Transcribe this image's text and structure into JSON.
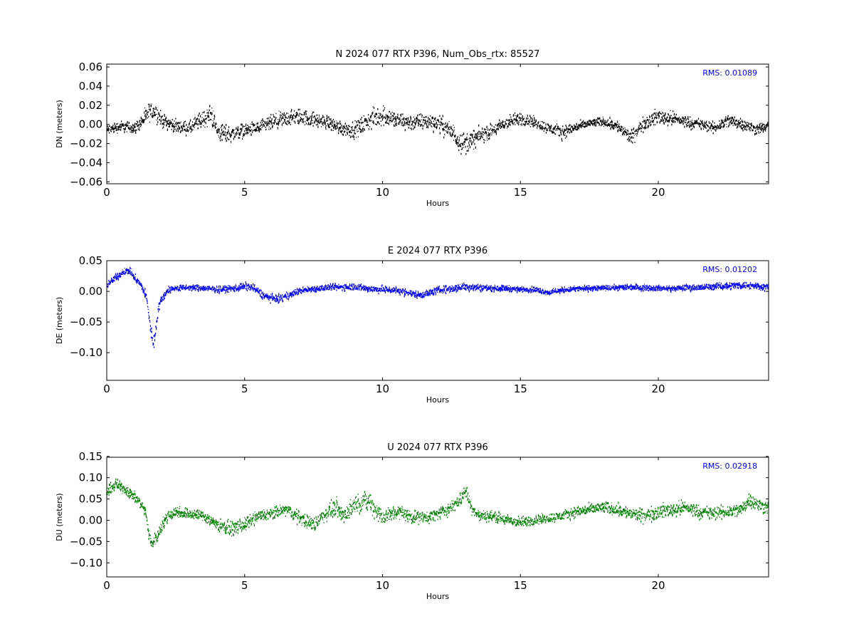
{
  "chart_data": [
    {
      "type": "scatter",
      "title": "N 2024 077 RTX  P396, Num_Obs_rtx: 85527",
      "xlabel": "Hours",
      "ylabel": "DN (meters)",
      "xlim": [
        0,
        24
      ],
      "ylim": [
        -0.062,
        0.063
      ],
      "xticks": [
        0,
        5,
        10,
        15,
        20
      ],
      "yticks": [
        -0.06,
        -0.04,
        -0.02,
        0.0,
        0.02,
        0.04,
        0.06
      ],
      "ytick_labels": [
        "−0.06",
        "−0.04",
        "−0.02",
        "0.00",
        "0.02",
        "0.04",
        "0.06"
      ],
      "color": "#000000",
      "annotation": "RMS:  0.01089",
      "annotation_color": "#0000ff",
      "num_obs": 85527,
      "series": [
        {
          "x": [
            0,
            0.5,
            1.0,
            1.3,
            1.5,
            1.7,
            2.0,
            2.5,
            3.0,
            3.5,
            3.8,
            4.0,
            4.5,
            5.0,
            5.5,
            6.0,
            6.5,
            7.0,
            7.5,
            8.0,
            8.5,
            9.0,
            9.5,
            9.8,
            10.0,
            10.5,
            11.0,
            11.5,
            12.0,
            12.5,
            12.8,
            13.0,
            13.5,
            14.0,
            14.5,
            15.0,
            15.5,
            16.0,
            16.5,
            17.0,
            17.5,
            18.0,
            18.5,
            19.0,
            19.5,
            20.0,
            20.5,
            21.0,
            21.5,
            22.0,
            22.5,
            23.0,
            23.5,
            24.0
          ],
          "y": [
            -0.006,
            -0.002,
            -0.004,
            0.004,
            0.012,
            0.015,
            0.004,
            -0.002,
            -0.004,
            0.006,
            0.01,
            -0.008,
            -0.01,
            -0.006,
            -0.004,
            0.002,
            0.006,
            0.008,
            0.005,
            0.002,
            -0.004,
            -0.006,
            0.004,
            0.008,
            0.01,
            0.004,
            0.002,
            0.003,
            0.002,
            -0.008,
            -0.018,
            -0.02,
            -0.012,
            -0.006,
            0.002,
            0.006,
            0.002,
            -0.004,
            -0.008,
            -0.003,
            0.001,
            0.003,
            -0.002,
            -0.014,
            0.002,
            0.008,
            0.006,
            0.003,
            0.0,
            -0.004,
            0.004,
            0.001,
            -0.005,
            -0.002
          ],
          "spread": [
            0.008,
            0.008,
            0.008,
            0.01,
            0.014,
            0.014,
            0.01,
            0.009,
            0.01,
            0.014,
            0.015,
            0.014,
            0.012,
            0.01,
            0.01,
            0.012,
            0.012,
            0.012,
            0.011,
            0.01,
            0.011,
            0.012,
            0.014,
            0.016,
            0.016,
            0.013,
            0.012,
            0.012,
            0.012,
            0.014,
            0.016,
            0.016,
            0.012,
            0.01,
            0.01,
            0.01,
            0.008,
            0.008,
            0.01,
            0.007,
            0.006,
            0.007,
            0.008,
            0.01,
            0.01,
            0.012,
            0.01,
            0.009,
            0.008,
            0.008,
            0.01,
            0.009,
            0.008,
            0.007
          ]
        }
      ]
    },
    {
      "type": "scatter",
      "title": "E 2024 077 RTX  P396",
      "xlabel": "Hours",
      "ylabel": "DE (meters)",
      "xlim": [
        0,
        24
      ],
      "ylim": [
        -0.145,
        0.05
      ],
      "xticks": [
        0,
        5,
        10,
        15,
        20
      ],
      "yticks": [
        -0.1,
        -0.05,
        0.0,
        0.05
      ],
      "ytick_labels": [
        "−0.10",
        "−0.05",
        "0.00",
        "0.05"
      ],
      "color": "#0000ff",
      "annotation": "RMS:  0.01202",
      "annotation_color": "#0000ff",
      "series": [
        {
          "x": [
            0,
            0.3,
            0.6,
            0.8,
            1.0,
            1.2,
            1.4,
            1.5,
            1.6,
            1.7,
            1.8,
            1.9,
            2.0,
            2.2,
            2.5,
            3.0,
            3.5,
            4.0,
            4.5,
            5.0,
            5.3,
            5.6,
            6.0,
            6.3,
            6.6,
            7.0,
            7.5,
            8.0,
            8.5,
            9.0,
            9.5,
            10.0,
            10.5,
            11.0,
            11.3,
            11.6,
            12.0,
            12.5,
            13.0,
            13.5,
            14.0,
            14.5,
            15.0,
            15.5,
            16.0,
            16.5,
            17.0,
            17.5,
            18.0,
            18.5,
            19.0,
            19.5,
            20.0,
            20.5,
            21.0,
            21.5,
            22.0,
            22.5,
            23.0,
            23.5,
            24.0
          ],
          "y": [
            0.01,
            0.022,
            0.032,
            0.034,
            0.022,
            0.012,
            -0.005,
            -0.035,
            -0.07,
            -0.085,
            -0.045,
            -0.02,
            -0.012,
            0.002,
            0.005,
            0.006,
            0.005,
            0.003,
            0.004,
            0.008,
            0.006,
            -0.005,
            -0.012,
            -0.012,
            -0.006,
            0.001,
            0.004,
            0.006,
            0.007,
            0.008,
            0.004,
            0.003,
            0.002,
            -0.003,
            -0.006,
            -0.004,
            0.002,
            0.004,
            0.008,
            0.006,
            0.005,
            0.005,
            0.003,
            0.003,
            -0.002,
            0.002,
            0.004,
            0.005,
            0.005,
            0.006,
            0.007,
            0.006,
            0.005,
            0.004,
            0.006,
            0.006,
            0.008,
            0.009,
            0.01,
            0.009,
            0.006
          ],
          "spread": [
            0.008,
            0.008,
            0.008,
            0.008,
            0.008,
            0.008,
            0.012,
            0.016,
            0.02,
            0.016,
            0.016,
            0.012,
            0.01,
            0.008,
            0.007,
            0.007,
            0.007,
            0.007,
            0.008,
            0.009,
            0.009,
            0.009,
            0.009,
            0.009,
            0.008,
            0.007,
            0.007,
            0.007,
            0.008,
            0.008,
            0.008,
            0.008,
            0.008,
            0.008,
            0.008,
            0.008,
            0.008,
            0.009,
            0.01,
            0.008,
            0.007,
            0.007,
            0.006,
            0.006,
            0.006,
            0.006,
            0.006,
            0.006,
            0.006,
            0.006,
            0.007,
            0.007,
            0.006,
            0.006,
            0.007,
            0.007,
            0.007,
            0.008,
            0.008,
            0.008,
            0.008
          ]
        }
      ]
    },
    {
      "type": "scatter",
      "title": "U 2024 077 RTX  P396",
      "xlabel": "Hours",
      "ylabel": "DU (meters)",
      "xlim": [
        0,
        24
      ],
      "ylim": [
        -0.133,
        0.148
      ],
      "xticks": [
        0,
        5,
        10,
        15,
        20
      ],
      "yticks": [
        -0.1,
        -0.05,
        0.0,
        0.05,
        0.1,
        0.15
      ],
      "ytick_labels": [
        "−0.10",
        "−0.05",
        "0.00",
        "0.05",
        "0.10",
        "0.15"
      ],
      "color": "#008000",
      "annotation": "RMS:  0.02918",
      "annotation_color": "#0000ff",
      "series": [
        {
          "x": [
            0,
            0.3,
            0.6,
            0.9,
            1.2,
            1.4,
            1.5,
            1.6,
            1.8,
            2.0,
            2.2,
            2.5,
            3.0,
            3.5,
            4.0,
            4.5,
            5.0,
            5.5,
            6.0,
            6.5,
            7.0,
            7.5,
            8.0,
            8.3,
            8.6,
            9.0,
            9.5,
            9.8,
            10.0,
            10.5,
            11.0,
            11.5,
            12.0,
            12.5,
            12.8,
            13.0,
            13.2,
            13.5,
            14.0,
            14.5,
            15.0,
            15.5,
            16.0,
            16.5,
            17.0,
            17.5,
            18.0,
            18.5,
            19.0,
            19.5,
            20.0,
            20.5,
            21.0,
            21.5,
            22.0,
            22.5,
            23.0,
            23.3,
            23.6,
            24.0
          ],
          "y": [
            0.065,
            0.085,
            0.075,
            0.06,
            0.04,
            0.02,
            -0.03,
            -0.055,
            -0.04,
            -0.01,
            0.01,
            0.02,
            0.015,
            0.01,
            -0.01,
            -0.02,
            -0.01,
            0.01,
            0.015,
            0.025,
            0.005,
            -0.01,
            0.02,
            0.03,
            0.01,
            0.04,
            0.045,
            0.02,
            0.005,
            0.02,
            0.01,
            0.005,
            0.015,
            0.03,
            0.05,
            0.07,
            0.03,
            0.01,
            0.01,
            0.0,
            -0.005,
            0.0,
            0.005,
            0.01,
            0.02,
            0.025,
            0.03,
            0.025,
            0.015,
            0.01,
            0.02,
            0.025,
            0.03,
            0.02,
            0.015,
            0.02,
            0.025,
            0.05,
            0.035,
            0.03
          ],
          "spread": [
            0.018,
            0.018,
            0.018,
            0.018,
            0.018,
            0.018,
            0.02,
            0.022,
            0.02,
            0.02,
            0.02,
            0.02,
            0.018,
            0.018,
            0.02,
            0.022,
            0.022,
            0.02,
            0.02,
            0.02,
            0.022,
            0.025,
            0.025,
            0.03,
            0.03,
            0.03,
            0.03,
            0.035,
            0.03,
            0.025,
            0.022,
            0.02,
            0.02,
            0.022,
            0.025,
            0.025,
            0.02,
            0.018,
            0.018,
            0.018,
            0.018,
            0.016,
            0.016,
            0.016,
            0.018,
            0.018,
            0.02,
            0.02,
            0.02,
            0.022,
            0.024,
            0.024,
            0.024,
            0.022,
            0.022,
            0.022,
            0.022,
            0.026,
            0.024,
            0.022
          ]
        }
      ]
    }
  ]
}
